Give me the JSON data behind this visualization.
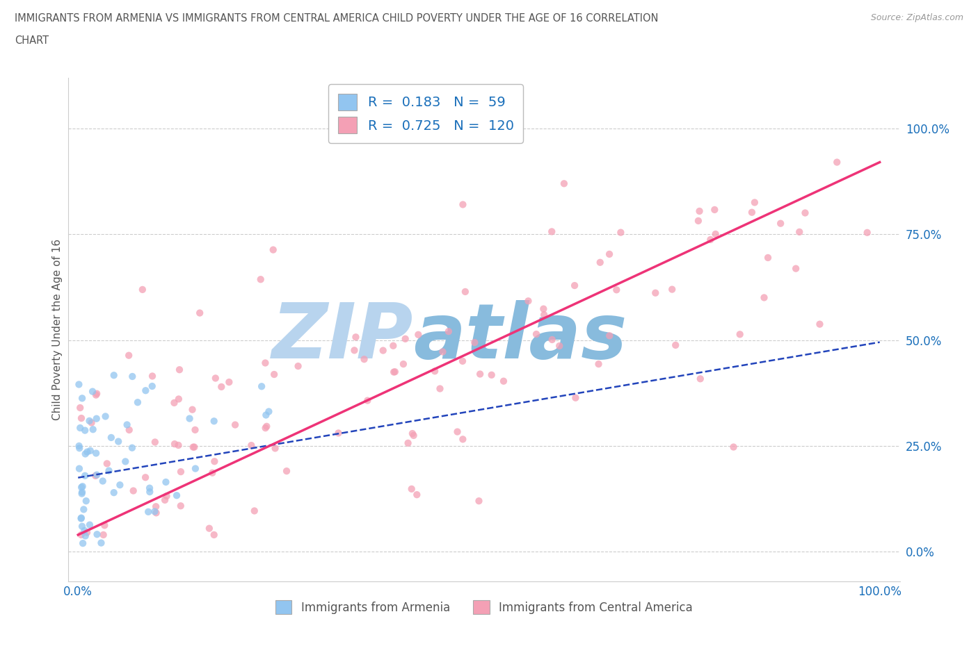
{
  "title_line1": "IMMIGRANTS FROM ARMENIA VS IMMIGRANTS FROM CENTRAL AMERICA CHILD POVERTY UNDER THE AGE OF 16 CORRELATION",
  "title_line2": "CHART",
  "source": "Source: ZipAtlas.com",
  "ylabel": "Child Poverty Under the Age of 16",
  "legend_armenia_R": "0.183",
  "legend_armenia_N": "59",
  "legend_central_america_R": "0.725",
  "legend_central_america_N": "120",
  "legend_label_armenia": "Immigrants from Armenia",
  "legend_label_central_america": "Immigrants from Central America",
  "armenia_color": "#92C5F0",
  "central_america_color": "#F4A0B5",
  "armenia_line_color": "#2244BB",
  "central_america_line_color": "#EE3377",
  "background_color": "#ffffff",
  "watermark_text": "ZIP",
  "watermark_text2": "atlas",
  "watermark_color1": "#b8d4ee",
  "watermark_color2": "#88bbdd",
  "title_color": "#555555",
  "legend_text_color": "#1a6fba",
  "axis_tick_color": "#1a6fba",
  "dot_size": 55,
  "dot_alpha": 0.75,
  "grid_color": "#cccccc",
  "source_color": "#999999"
}
